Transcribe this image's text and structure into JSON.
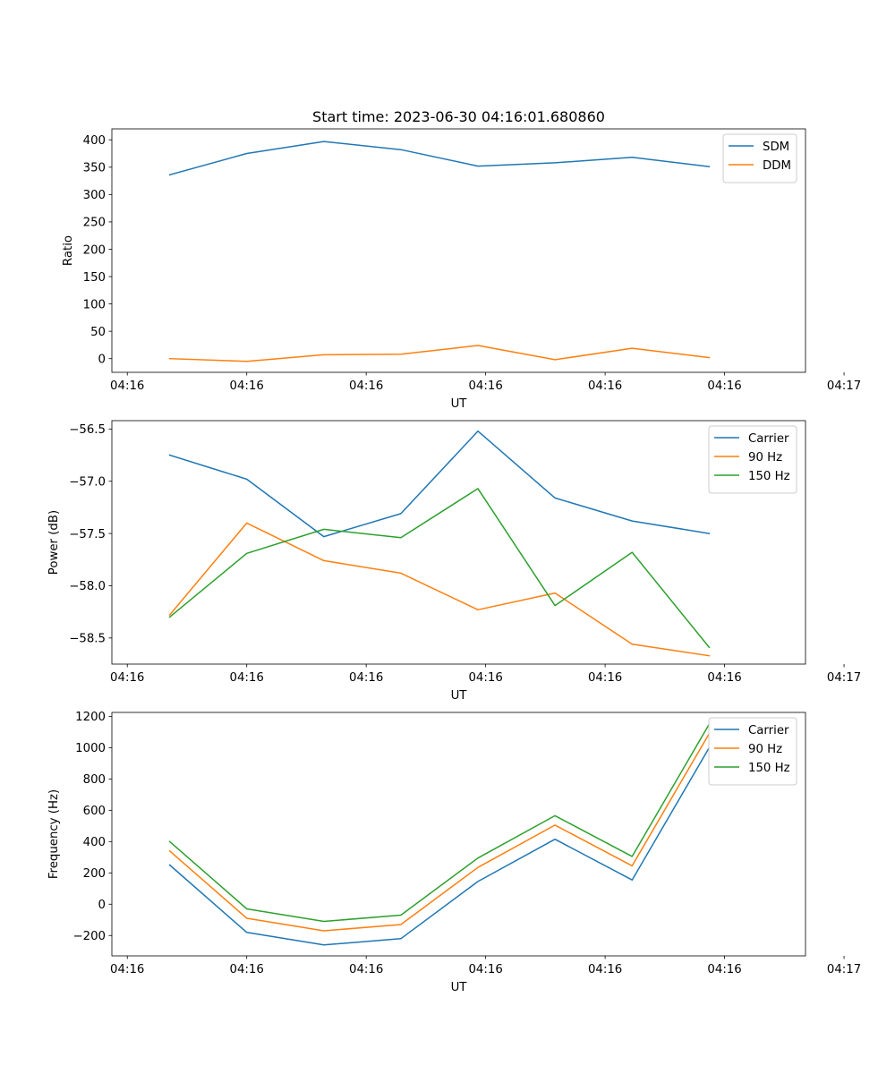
{
  "figure_title": "Start time: 2023-06-30 04:16:01.680860",
  "colors": {
    "blue": "#1f77b4",
    "orange": "#ff7f0e",
    "green": "#2ca02c"
  },
  "chart_data": [
    {
      "type": "line",
      "title": "Start time: 2023-06-30 04:16:01.680860",
      "xlabel": "UT",
      "ylabel": "Ratio",
      "x": [
        1,
        2,
        3,
        4,
        5,
        6,
        7,
        8
      ],
      "xlim": [
        0.25,
        9.25
      ],
      "ylim": [
        -25,
        420
      ],
      "xtick_positions": [
        0.45,
        2,
        3.55,
        5.1,
        6.65,
        8.2,
        9.75
      ],
      "xtick_labels": [
        "04:16",
        "04:16",
        "04:16",
        "04:16",
        "04:16",
        "04:16",
        "04:17"
      ],
      "yticks": [
        0,
        50,
        100,
        150,
        200,
        250,
        300,
        350,
        400
      ],
      "legend_position": "top-right",
      "series": [
        {
          "name": "SDM",
          "color": "#1f77b4",
          "values": [
            336,
            375,
            397,
            382,
            352,
            358,
            368,
            351
          ]
        },
        {
          "name": "DDM",
          "color": "#ff7f0e",
          "values": [
            0,
            -5,
            7,
            8,
            24,
            -2,
            19,
            2
          ]
        }
      ]
    },
    {
      "type": "line",
      "title": "",
      "xlabel": "UT",
      "ylabel": "Power (dB)",
      "x": [
        1,
        2,
        3,
        4,
        5,
        6,
        7,
        8
      ],
      "xlim": [
        0.25,
        9.25
      ],
      "ylim": [
        -58.75,
        -56.42
      ],
      "xtick_positions": [
        0.45,
        2,
        3.55,
        5.1,
        6.65,
        8.2,
        9.75
      ],
      "xtick_labels": [
        "04:16",
        "04:16",
        "04:16",
        "04:16",
        "04:16",
        "04:16",
        "04:17"
      ],
      "yticks": [
        -58.5,
        -58.0,
        -57.5,
        -57.0,
        -56.5
      ],
      "ytick_labels": [
        "−58.5",
        "−58.0",
        "−57.5",
        "−57.0",
        "−56.5"
      ],
      "legend_position": "top-right",
      "series": [
        {
          "name": "Carrier",
          "color": "#1f77b4",
          "values": [
            -56.75,
            -56.98,
            -57.53,
            -57.31,
            -56.52,
            -57.16,
            -57.38,
            -57.5
          ]
        },
        {
          "name": "90 Hz",
          "color": "#ff7f0e",
          "values": [
            -58.28,
            -57.4,
            -57.76,
            -57.88,
            -58.23,
            -58.07,
            -58.56,
            -58.67
          ]
        },
        {
          "name": "150 Hz",
          "color": "#2ca02c",
          "values": [
            -58.3,
            -57.69,
            -57.46,
            -57.54,
            -57.07,
            -58.19,
            -57.68,
            -58.59
          ]
        }
      ]
    },
    {
      "type": "line",
      "title": "",
      "xlabel": "UT",
      "ylabel": "Frequency (Hz)",
      "x": [
        1,
        2,
        3,
        4,
        5,
        6,
        7,
        8
      ],
      "xlim": [
        0.25,
        9.25
      ],
      "ylim": [
        -330,
        1225
      ],
      "xtick_positions": [
        0.45,
        2,
        3.55,
        5.1,
        6.65,
        8.2,
        9.75
      ],
      "xtick_labels": [
        "04:16",
        "04:16",
        "04:16",
        "04:16",
        "04:16",
        "04:16",
        "04:17"
      ],
      "yticks": [
        -200,
        0,
        200,
        400,
        600,
        800,
        1000,
        1200
      ],
      "ytick_labels": [
        "−200",
        "0",
        "200",
        "400",
        "600",
        "800",
        "1000",
        "1200"
      ],
      "legend_position": "top-right",
      "series": [
        {
          "name": "Carrier",
          "color": "#1f77b4",
          "values": [
            250,
            -180,
            -260,
            -220,
            145,
            415,
            155,
            1000
          ]
        },
        {
          "name": "90 Hz",
          "color": "#ff7f0e",
          "values": [
            340,
            -90,
            -170,
            -130,
            235,
            505,
            245,
            1090
          ]
        },
        {
          "name": "150 Hz",
          "color": "#2ca02c",
          "values": [
            400,
            -30,
            -110,
            -70,
            295,
            565,
            305,
            1150
          ]
        }
      ]
    }
  ]
}
